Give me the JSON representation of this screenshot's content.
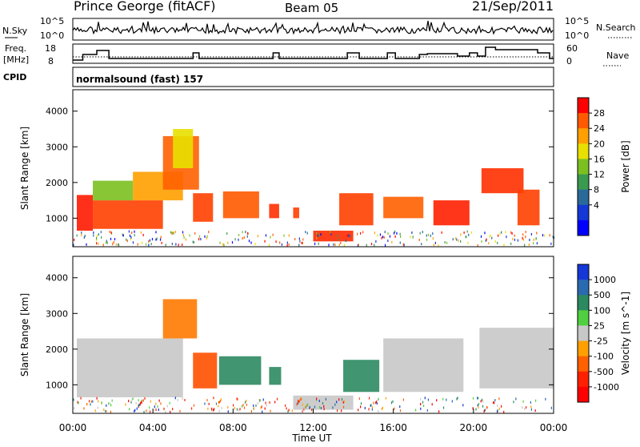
{
  "header": {
    "station": "Prince George (fitACF)",
    "beam": "Beam 05",
    "date": "21/Sep/2011"
  },
  "strips": {
    "nsky_label": "N.Sky",
    "nsky_ticks": [
      "10^5",
      "10^0"
    ],
    "nsearch_label": "N.Search",
    "nsearch_ticks": [
      "10^5",
      "10^0"
    ],
    "freq_label": "Freq.",
    "freq_unit": "[MHz]",
    "freq_ticks": [
      "18",
      "8"
    ],
    "nave_label": "Nave",
    "nave_ticks": [
      "60",
      "0"
    ],
    "cpid_label": "CPID",
    "cpid_text": "normalsound (fast) 157"
  },
  "chart_data": [
    {
      "type": "heatmap",
      "name": "power",
      "ylabel": "Slant Range [km]",
      "yticks": [
        1000,
        2000,
        3000,
        4000
      ],
      "ylim": [
        200,
        4600
      ],
      "colorbar": {
        "label": "Power [dB]",
        "ticks": [
          "28",
          "24",
          "20",
          "16",
          "12",
          "8",
          "4"
        ],
        "colors": [
          "#ff0000",
          "#ff5a00",
          "#ffa000",
          "#e8e000",
          "#7cc020",
          "#3a9a50",
          "#2a6a9a",
          "#1438d8",
          "#0000ff"
        ]
      },
      "regions": [
        {
          "t0": 0.2,
          "t1": 1.0,
          "r0": 650,
          "r1": 1650,
          "c": "#ff1a00"
        },
        {
          "t0": 1.0,
          "t1": 4.5,
          "r0": 700,
          "r1": 1500,
          "c": "#ff4000"
        },
        {
          "t0": 1.0,
          "t1": 3.0,
          "r0": 1500,
          "r1": 2050,
          "c": "#7cc020"
        },
        {
          "t0": 3.0,
          "t1": 5.5,
          "r0": 1500,
          "r1": 2300,
          "c": "#ffa000"
        },
        {
          "t0": 4.5,
          "t1": 6.3,
          "r0": 1800,
          "r1": 3300,
          "c": "#ff6000"
        },
        {
          "t0": 5.0,
          "t1": 6.0,
          "r0": 2400,
          "r1": 3500,
          "c": "#e8e000"
        },
        {
          "t0": 6.0,
          "t1": 7.0,
          "r0": 900,
          "r1": 1700,
          "c": "#ff4000"
        },
        {
          "t0": 7.5,
          "t1": 9.3,
          "r0": 1000,
          "r1": 1750,
          "c": "#ff5a00"
        },
        {
          "t0": 9.8,
          "t1": 10.3,
          "r0": 1000,
          "r1": 1400,
          "c": "#ff3000"
        },
        {
          "t0": 11.0,
          "t1": 11.3,
          "r0": 1000,
          "r1": 1300,
          "c": "#ff4000"
        },
        {
          "t0": 12.0,
          "t1": 14.0,
          "r0": 350,
          "r1": 650,
          "c": "#ff2a00"
        },
        {
          "t0": 13.3,
          "t1": 15.0,
          "r0": 800,
          "r1": 1700,
          "c": "#ff4000"
        },
        {
          "t0": 15.5,
          "t1": 17.5,
          "r0": 1000,
          "r1": 1600,
          "c": "#ff6000"
        },
        {
          "t0": 18.0,
          "t1": 19.8,
          "r0": 800,
          "r1": 1500,
          "c": "#ff2000"
        },
        {
          "t0": 20.4,
          "t1": 22.5,
          "r0": 1700,
          "r1": 2400,
          "c": "#ff3000"
        },
        {
          "t0": 22.2,
          "t1": 23.3,
          "r0": 800,
          "r1": 1800,
          "c": "#ff4000"
        }
      ]
    },
    {
      "type": "heatmap",
      "name": "velocity",
      "ylabel": "Slant Range [km]",
      "xlabel": "Time UT",
      "yticks": [
        1000,
        2000,
        3000,
        4000
      ],
      "ylim": [
        200,
        4600
      ],
      "xticks": [
        "00:00",
        "04:00",
        "08:00",
        "12:00",
        "16:00",
        "20:00",
        "00:00"
      ],
      "colorbar": {
        "label": "Velocity [m s^-1]",
        "ticks": [
          "1000",
          "500",
          "100",
          "25",
          "-25",
          "-100",
          "-500",
          "-1000"
        ],
        "colors": [
          "#1438d8",
          "#2a6ab0",
          "#2c8a60",
          "#50d040",
          "#c8c8c8",
          "#ffa000",
          "#ff6000",
          "#ff2000",
          "#ff0000"
        ]
      },
      "regions": [
        {
          "t0": 0.2,
          "t1": 5.5,
          "r0": 650,
          "r1": 2300,
          "c": "#c8c8c8"
        },
        {
          "t0": 4.5,
          "t1": 6.2,
          "r0": 2300,
          "r1": 3400,
          "c": "#ff7a00"
        },
        {
          "t0": 6.0,
          "t1": 7.2,
          "r0": 900,
          "r1": 1900,
          "c": "#ff5000"
        },
        {
          "t0": 7.3,
          "t1": 9.4,
          "r0": 1000,
          "r1": 1800,
          "c": "#2c8a60"
        },
        {
          "t0": 9.8,
          "t1": 10.4,
          "r0": 1000,
          "r1": 1500,
          "c": "#2c8a60"
        },
        {
          "t0": 11.0,
          "t1": 14.0,
          "r0": 300,
          "r1": 700,
          "c": "#c8c8c8"
        },
        {
          "t0": 13.5,
          "t1": 15.3,
          "r0": 800,
          "r1": 1700,
          "c": "#2c8a60"
        },
        {
          "t0": 15.5,
          "t1": 19.5,
          "r0": 800,
          "r1": 2300,
          "c": "#c8c8c8"
        },
        {
          "t0": 20.3,
          "t1": 24.0,
          "r0": 900,
          "r1": 2600,
          "c": "#c8c8c8"
        }
      ]
    }
  ]
}
